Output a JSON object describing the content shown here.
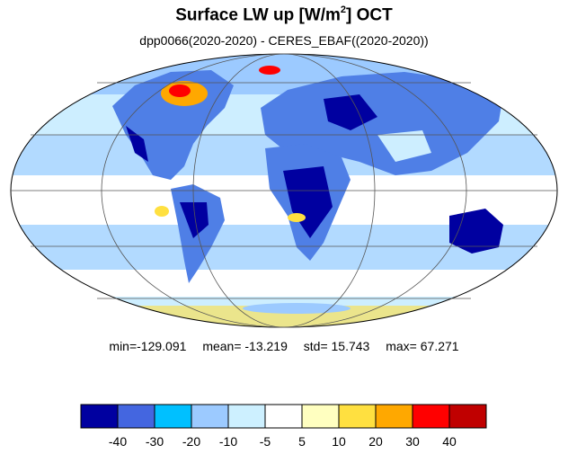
{
  "header": {
    "title_main": "Surface LW up [W/m",
    "title_sup": "2",
    "title_tail": "]  OCT",
    "subtitle": "dpp0066(2020-2020) - CERES_EBAF((2020-2020))"
  },
  "stats": {
    "min": "min=-129.091",
    "mean": "mean= -13.219",
    "std": "std=  15.743",
    "max": "max=  67.271"
  },
  "colorbar": {
    "colors": [
      "#0000a0",
      "#4466e0",
      "#00c0ff",
      "#9ccaff",
      "#cdf0ff",
      "#ffffff",
      "#ffffc0",
      "#ffe040",
      "#ffa800",
      "#ff0000",
      "#c00000"
    ],
    "labels": [
      "-40",
      "-30",
      "-20",
      "-10",
      "-5",
      "5",
      "10",
      "20",
      "30",
      "40"
    ]
  },
  "map": {
    "projection": "mollweide",
    "ocean_color": "#cdeeff",
    "land_color": "#4f7fe6"
  }
}
